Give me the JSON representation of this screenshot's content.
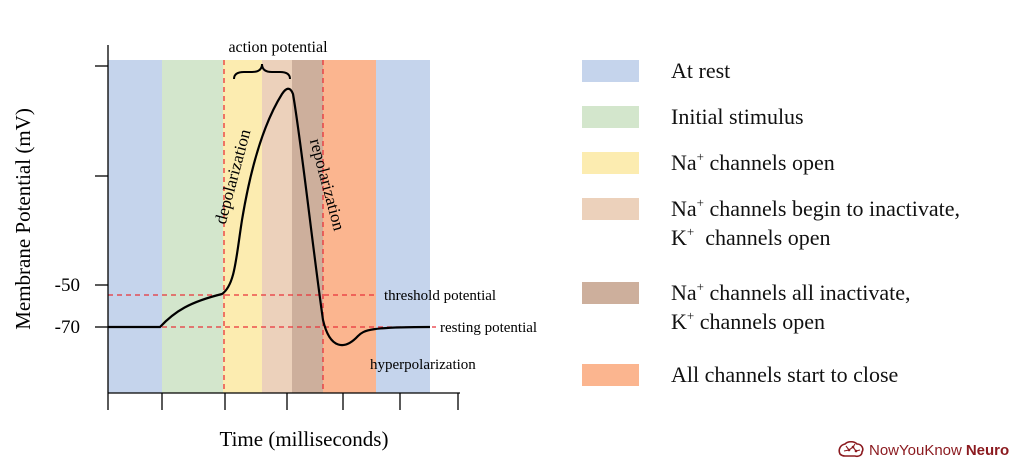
{
  "diagram": {
    "y_axis_label": "Membrane Potential (mV)",
    "x_axis_label": "Time (milliseconds)",
    "y_ticks": [
      "-50",
      "-70"
    ],
    "top_label": "action potential",
    "threshold_label": "threshold potential",
    "resting_label": "resting potential",
    "depolarization_label": "depolarization",
    "repolarization_label": "repolarization",
    "hyperpolarization_label": "hyperpolarization",
    "threshold_mv": -55,
    "resting_mv": -70,
    "colors": {
      "rest": "#c5d4ec",
      "stimulus": "#d3e6cc",
      "na_open": "#fcecb0",
      "na_begin_inactivate": "#ecd1bb",
      "na_all_inactivate": "#cdaf9c",
      "close": "#fbb58f",
      "dashed": "#e8333a",
      "curve": "#000000"
    }
  },
  "legend": [
    {
      "key": "rest",
      "lines": [
        [
          {
            "t": "At rest"
          }
        ]
      ]
    },
    {
      "key": "stimulus",
      "lines": [
        [
          {
            "t": "Initial stimulus"
          }
        ]
      ]
    },
    {
      "key": "na_open",
      "lines": [
        [
          {
            "t": "Na"
          },
          {
            "sup": "+"
          },
          {
            "t": " channels open"
          }
        ]
      ]
    },
    {
      "key": "na_begin_inactivate",
      "lines": [
        [
          {
            "t": "Na"
          },
          {
            "sup": "+"
          },
          {
            "t": " channels begin to inactivate,"
          }
        ],
        [
          {
            "t": "K"
          },
          {
            "sup": "+"
          },
          {
            "t": "  channels open"
          }
        ]
      ]
    },
    {
      "key": "na_all_inactivate",
      "lines": [
        [
          {
            "t": "Na"
          },
          {
            "sup": "+"
          },
          {
            "t": " channels all inactivate,"
          }
        ],
        [
          {
            "t": "K"
          },
          {
            "sup": "+"
          },
          {
            "t": " channels open"
          }
        ]
      ]
    },
    {
      "key": "close",
      "lines": [
        [
          {
            "t": "All channels start to close"
          }
        ]
      ]
    }
  ],
  "brand": {
    "text_regular": "NowYouKnow",
    "text_bold": "Neuro"
  }
}
